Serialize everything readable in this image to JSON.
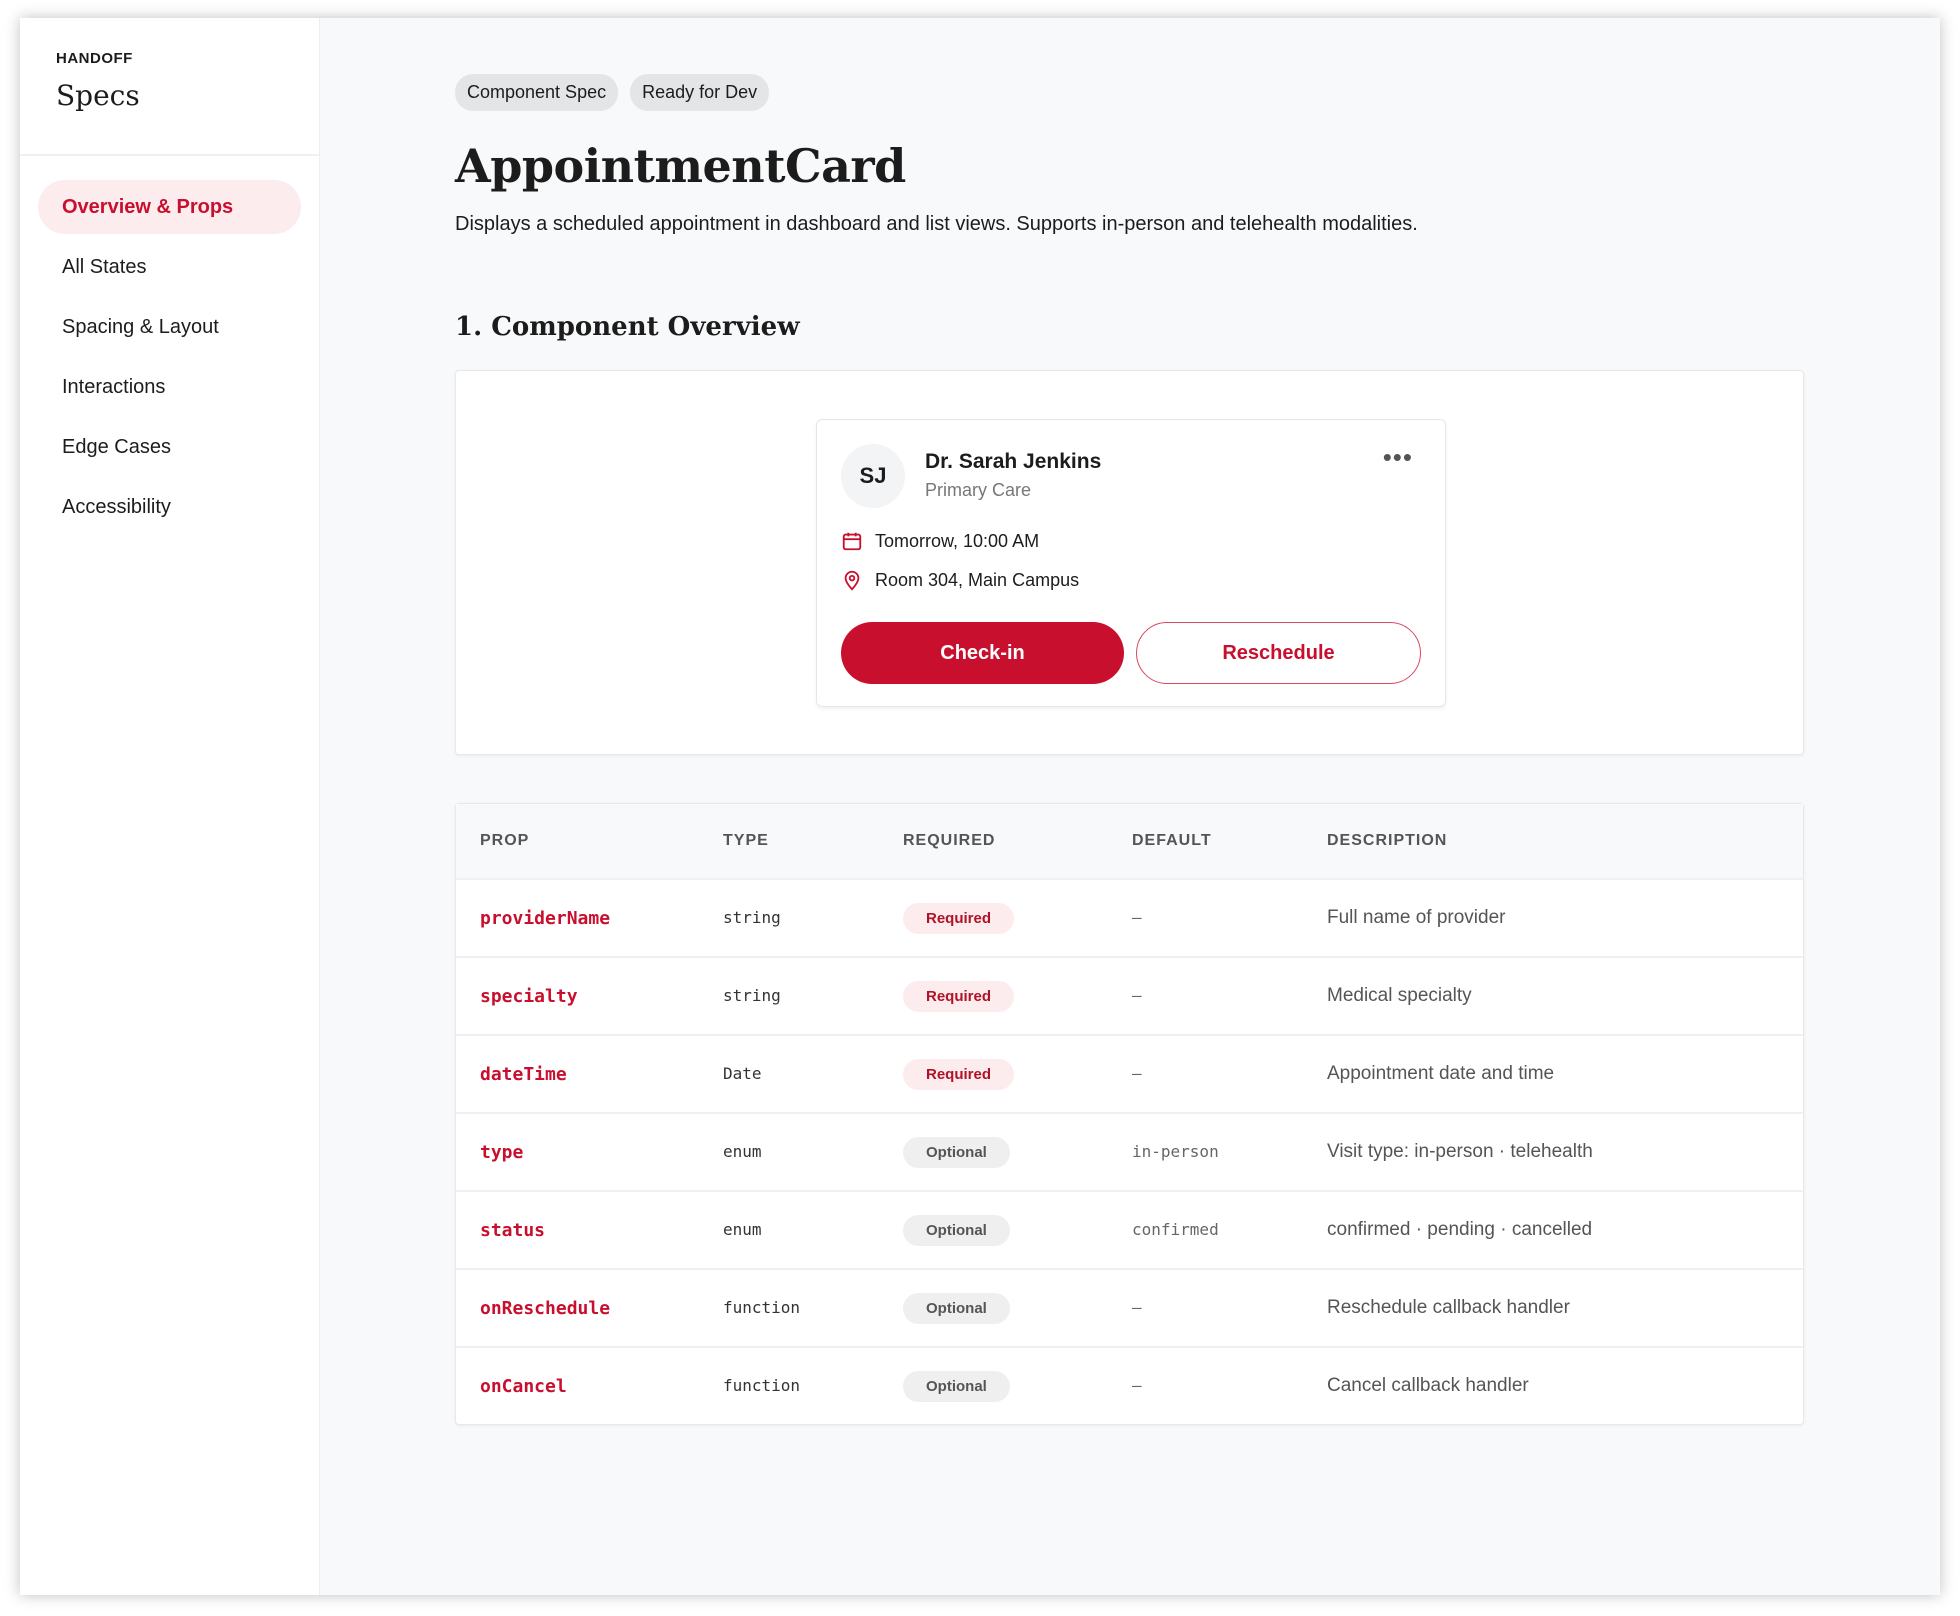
{
  "sidebar": {
    "kicker": "HANDOFF",
    "title": "Specs",
    "items": [
      {
        "label": "Overview & Props",
        "active": true
      },
      {
        "label": "All States"
      },
      {
        "label": "Spacing & Layout"
      },
      {
        "label": "Interactions"
      },
      {
        "label": "Edge Cases"
      },
      {
        "label": "Accessibility"
      }
    ]
  },
  "header": {
    "chips": [
      "Component Spec",
      "Ready for Dev"
    ],
    "title": "AppointmentCard",
    "description": "Displays a scheduled appointment in dashboard and list views. Supports in-person and telehealth modalities."
  },
  "section": {
    "title": "1. Component Overview"
  },
  "card": {
    "initials": "SJ",
    "name": "Dr. Sarah Jenkins",
    "specialty": "Primary Care",
    "more_icon": "more-horizontal-icon",
    "datetime": "Tomorrow, 10:00 AM",
    "location": "Room 304, Main Campus",
    "primary_label": "Check-in",
    "secondary_label": "Reschedule",
    "accent": "#c8102e"
  },
  "table": {
    "headers": [
      "PROP",
      "TYPE",
      "REQUIRED",
      "DEFAULT",
      "DESCRIPTION"
    ],
    "rows": [
      {
        "prop": "providerName",
        "type": "string",
        "required": "Required",
        "default": "–",
        "description": "Full name of provider"
      },
      {
        "prop": "specialty",
        "type": "string",
        "required": "Required",
        "default": "–",
        "description": "Medical specialty"
      },
      {
        "prop": "dateTime",
        "type": "Date",
        "required": "Required",
        "default": "–",
        "description": "Appointment date and time"
      },
      {
        "prop": "type",
        "type": "enum",
        "required": "Optional",
        "default": "in-person",
        "description": "Visit type: in-person · telehealth"
      },
      {
        "prop": "status",
        "type": "enum",
        "required": "Optional",
        "default": "confirmed",
        "description": "confirmed · pending · cancelled"
      },
      {
        "prop": "onReschedule",
        "type": "function",
        "required": "Optional",
        "default": "–",
        "description": "Reschedule callback handler"
      },
      {
        "prop": "onCancel",
        "type": "function",
        "required": "Optional",
        "default": "–",
        "description": "Cancel callback handler"
      }
    ]
  }
}
